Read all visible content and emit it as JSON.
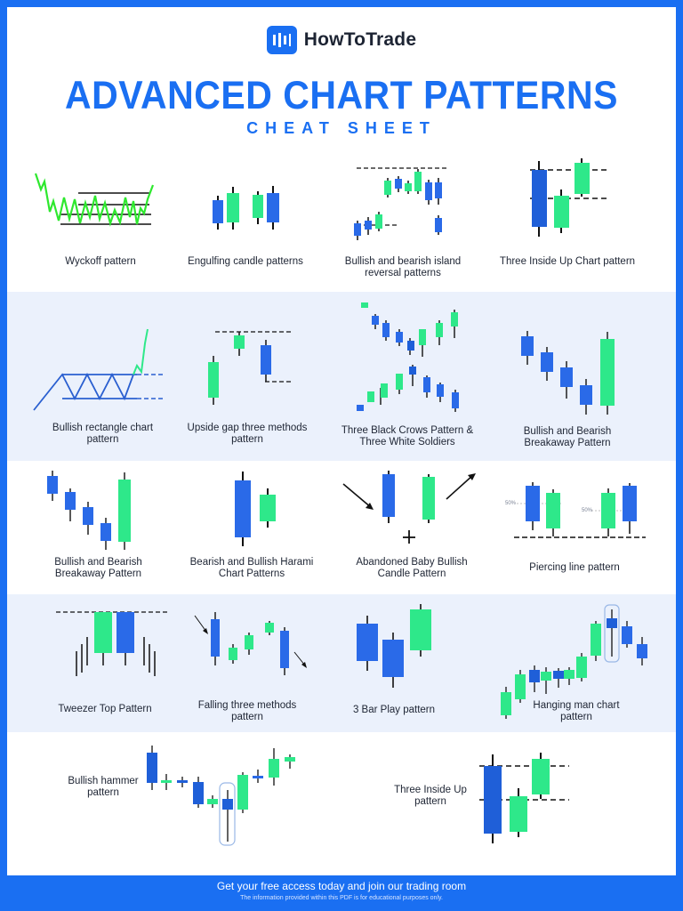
{
  "brand": {
    "name": "HowToTrade",
    "logo_icon": "bar-chart-logo-icon"
  },
  "title": "ADVANCED CHART PATTERNS",
  "subtitle": "CHEAT SHEET",
  "colors": {
    "blue": "#1a6ff2",
    "candle_blue": "#2a6ae8",
    "candle_green": "#2ee88a",
    "band": "#ebf1fc",
    "ink": "#1d2433"
  },
  "patterns": [
    {
      "label": "Wyckoff pattern"
    },
    {
      "label": "Engulfing candle patterns"
    },
    {
      "label": "Bullish and bearish island reversal patterns"
    },
    {
      "label": "Three Inside Up Chart pattern"
    },
    {
      "label": "Bullish rectangle chart pattern"
    },
    {
      "label": "Upside gap three methods pattern"
    },
    {
      "label": "Three Black Crows Pattern & Three White Soldiers"
    },
    {
      "label": "Bullish and Bearish Breakaway Pattern"
    },
    {
      "label": "Bullish and Bearish Breakaway Pattern"
    },
    {
      "label": "Bearish and Bullish Harami Chart Patterns"
    },
    {
      "label": "Abandoned Baby Bullish Candle Pattern"
    },
    {
      "label": "Piercing line pattern",
      "marks": [
        "50%",
        "50%"
      ]
    },
    {
      "label": "Tweezer Top Pattern"
    },
    {
      "label": "Falling three methods pattern"
    },
    {
      "label": "3 Bar Play pattern"
    },
    {
      "label": "Hanging man chart pattern"
    },
    {
      "label": "Bullish hammer pattern"
    },
    {
      "label": "Three Inside Up pattern"
    }
  ],
  "footer": {
    "cta": "Get your free access today and join our trading room",
    "note": "The information provided within this PDF is for educational purposes only."
  }
}
